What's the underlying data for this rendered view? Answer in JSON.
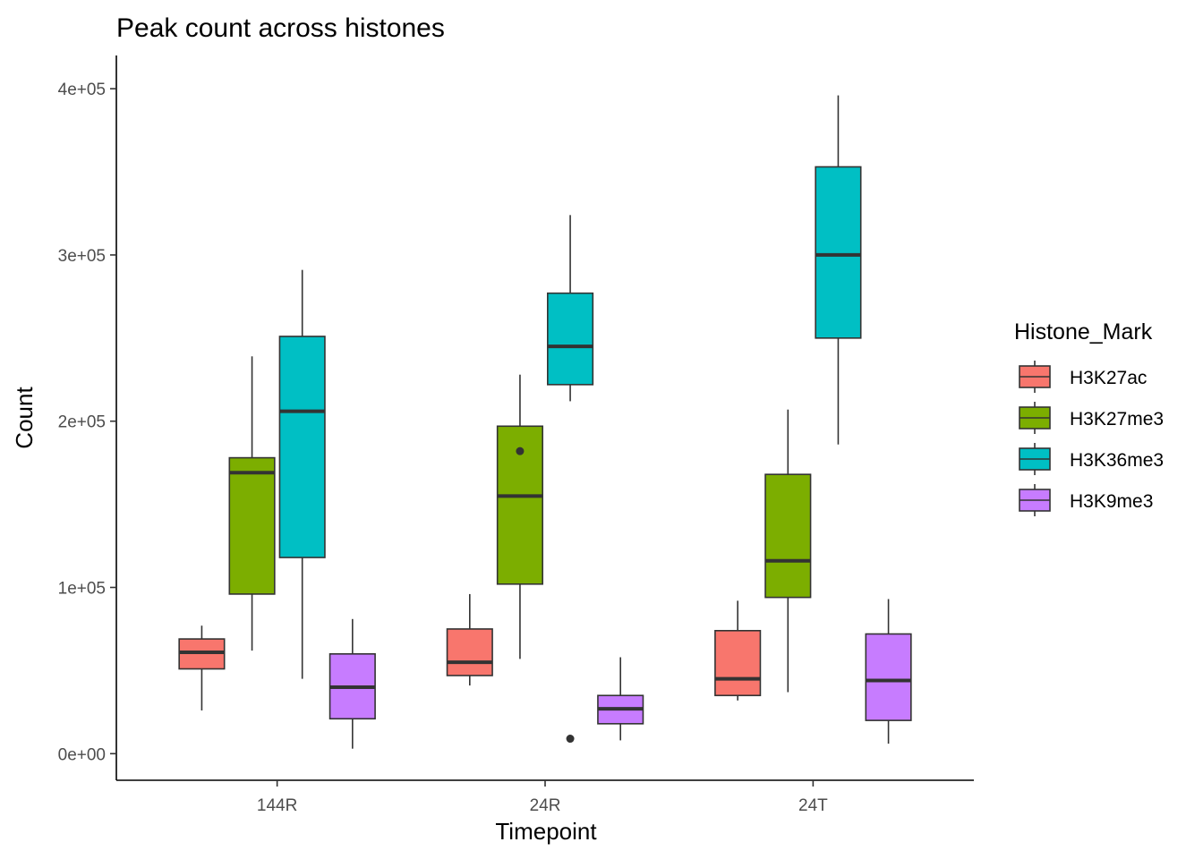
{
  "chart_data": {
    "type": "boxplot",
    "title": "Peak count across histones",
    "xlabel": "Timepoint",
    "ylabel": "Count",
    "categories": [
      "144R",
      "24R",
      "24T"
    ],
    "ylim": [
      -16000,
      420000
    ],
    "yticks": [
      0,
      100000,
      200000,
      300000,
      400000
    ],
    "ytick_labels": [
      "0e+00",
      "1e+05",
      "2e+05",
      "3e+05",
      "4e+05"
    ],
    "legend": {
      "title": "Histone_Mark",
      "position": "right",
      "entries": [
        "H3K27ac",
        "H3K27me3",
        "H3K36me3",
        "H3K9me3"
      ]
    },
    "grid": false,
    "series": [
      {
        "name": "H3K27ac",
        "color": "#F8766D",
        "boxes": [
          {
            "whisker_low": 26000,
            "q1": 51000,
            "median": 61000,
            "q3": 69000,
            "whisker_high": 77000,
            "outliers": []
          },
          {
            "whisker_low": 41000,
            "q1": 47000,
            "median": 55000,
            "q3": 75000,
            "whisker_high": 96000,
            "outliers": []
          },
          {
            "whisker_low": 32000,
            "q1": 35000,
            "median": 45000,
            "q3": 74000,
            "whisker_high": 92000,
            "outliers": []
          }
        ]
      },
      {
        "name": "H3K27me3",
        "color": "#7CAE00",
        "boxes": [
          {
            "whisker_low": 62000,
            "q1": 96000,
            "median": 169000,
            "q3": 178000,
            "whisker_high": 239000,
            "outliers": []
          },
          {
            "whisker_low": 57000,
            "q1": 102000,
            "median": 155000,
            "q3": 197000,
            "whisker_high": 228000,
            "outliers": [
              182000
            ]
          },
          {
            "whisker_low": 37000,
            "q1": 94000,
            "median": 116000,
            "q3": 168000,
            "whisker_high": 207000,
            "outliers": []
          }
        ]
      },
      {
        "name": "H3K36me3",
        "color": "#00BFC4",
        "boxes": [
          {
            "whisker_low": 45000,
            "q1": 118000,
            "median": 206000,
            "q3": 251000,
            "whisker_high": 291000,
            "outliers": []
          },
          {
            "whisker_low": 212000,
            "q1": 222000,
            "median": 245000,
            "q3": 277000,
            "whisker_high": 324000,
            "outliers": [
              9000
            ]
          },
          {
            "whisker_low": 186000,
            "q1": 250000,
            "median": 300000,
            "q3": 353000,
            "whisker_high": 396000,
            "outliers": []
          }
        ]
      },
      {
        "name": "H3K9me3",
        "color": "#C77CFF",
        "boxes": [
          {
            "whisker_low": 3000,
            "q1": 21000,
            "median": 40000,
            "q3": 60000,
            "whisker_high": 81000,
            "outliers": []
          },
          {
            "whisker_low": 8000,
            "q1": 18000,
            "median": 27000,
            "q3": 35000,
            "whisker_high": 58000,
            "outliers": []
          },
          {
            "whisker_low": 6000,
            "q1": 20000,
            "median": 44000,
            "q3": 72000,
            "whisker_high": 93000,
            "outliers": []
          }
        ]
      }
    ]
  }
}
